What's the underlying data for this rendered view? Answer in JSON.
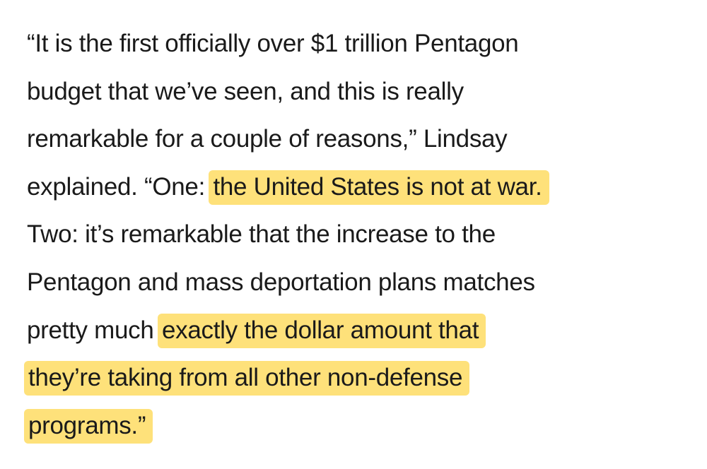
{
  "article": {
    "lines": [
      [
        {
          "text": "“It is the first officially over $1 trillion Pentagon",
          "highlighted": false
        }
      ],
      [
        {
          "text": "budget that we’ve seen, and this is really",
          "highlighted": false
        }
      ],
      [
        {
          "text": "remarkable for a couple of reasons,” Lindsay",
          "highlighted": false
        }
      ],
      [
        {
          "text": "explained. “One: ",
          "highlighted": false
        },
        {
          "text": "the United States is not at war.",
          "highlighted": true
        }
      ],
      [
        {
          "text": "Two: it’s remarkable that the increase to the",
          "highlighted": false
        }
      ],
      [
        {
          "text": "Pentagon and mass deportation plans matches",
          "highlighted": false
        }
      ],
      [
        {
          "text": "pretty much ",
          "highlighted": false
        },
        {
          "text": "exactly the dollar amount that",
          "highlighted": true
        }
      ],
      [
        {
          "text": "they’re taking from all other non-defense",
          "highlighted": true
        }
      ],
      [
        {
          "text": "programs.”",
          "highlighted": true
        }
      ]
    ]
  }
}
